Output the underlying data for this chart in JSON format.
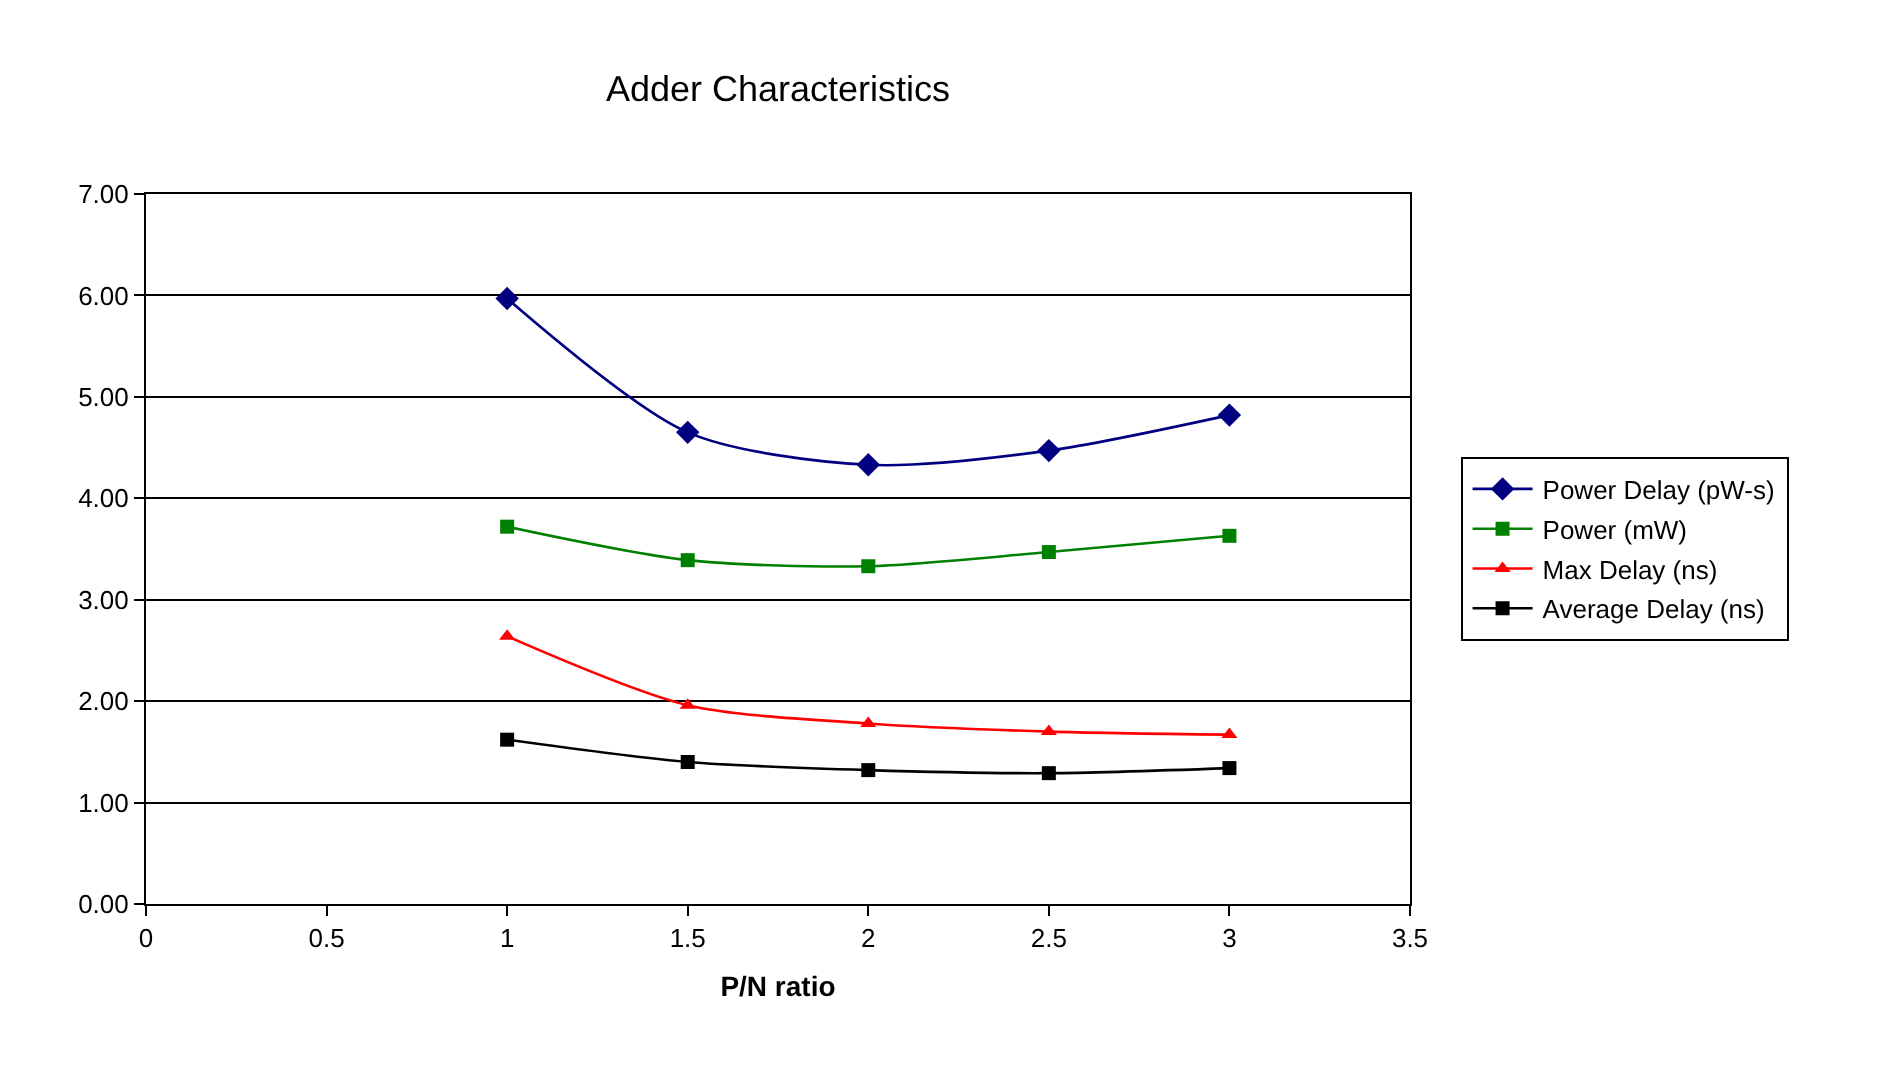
{
  "chart_data": {
    "type": "line",
    "title": "Adder Characteristics",
    "xlabel": "P/N ratio",
    "x": [
      1,
      1.5,
      2,
      2.5,
      3
    ],
    "series": [
      {
        "name": "Power Delay (pW-s)",
        "color": "#000080",
        "marker": "diamond",
        "values": [
          5.97,
          4.65,
          4.33,
          4.47,
          4.82
        ]
      },
      {
        "name": "Power (mW)",
        "color": "#008000",
        "marker": "square",
        "values": [
          3.72,
          3.39,
          3.33,
          3.47,
          3.63
        ]
      },
      {
        "name": "Max Delay (ns)",
        "color": "#ff0000",
        "marker": "triangle",
        "values": [
          2.64,
          1.96,
          1.78,
          1.7,
          1.67
        ]
      },
      {
        "name": "Average Delay (ns)",
        "color": "#000000",
        "marker": "square",
        "values": [
          1.62,
          1.4,
          1.32,
          1.29,
          1.34
        ]
      }
    ],
    "xlim": [
      0,
      3.5
    ],
    "xticks": [
      0,
      0.5,
      1,
      1.5,
      2,
      2.5,
      3,
      3.5
    ],
    "ylim": [
      0,
      7
    ],
    "yticks": [
      {
        "value": 0,
        "label": "0.00"
      },
      {
        "value": 1,
        "label": "1.00"
      },
      {
        "value": 2,
        "label": "2.00"
      },
      {
        "value": 3,
        "label": "3.00"
      },
      {
        "value": 4,
        "label": "4.00"
      },
      {
        "value": 5,
        "label": "5.00"
      },
      {
        "value": 6,
        "label": "6.00"
      },
      {
        "value": 7,
        "label": "7.00"
      }
    ],
    "grid": "y",
    "legend": "right",
    "line_style": "solid"
  }
}
